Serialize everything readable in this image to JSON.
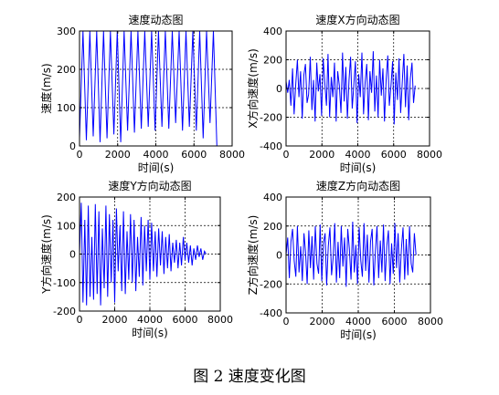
{
  "figure": {
    "caption": "图 2  速度变化图"
  },
  "chart_data": [
    {
      "type": "line",
      "title": "速度动态图",
      "xlabel": "时间(s)",
      "ylabel": "速度(m/s)",
      "xlim": [
        0,
        8000
      ],
      "ylim": [
        0,
        300
      ],
      "xticks": [
        0,
        2000,
        4000,
        6000,
        8000
      ],
      "yticks": [
        0,
        100,
        200,
        300
      ],
      "grid": true,
      "line_color": "#0000ff",
      "series": [
        {
          "x": [
            0,
            180,
            360,
            540,
            720,
            900,
            1080,
            1260,
            1440,
            1620,
            1800,
            1980,
            2160,
            2340,
            2520,
            2700,
            2880,
            3060,
            3240,
            3420,
            3600,
            3780,
            3960,
            4140,
            4320,
            4500,
            4680,
            4860,
            5040,
            5220,
            5400,
            5580,
            5760,
            5940,
            6120,
            6300,
            6480,
            6660,
            6840,
            7020,
            7200
          ],
          "y": [
            20,
            300,
            15,
            300,
            25,
            300,
            10,
            300,
            20,
            300,
            30,
            300,
            10,
            300,
            40,
            300,
            35,
            300,
            45,
            300,
            50,
            300,
            40,
            300,
            50,
            300,
            45,
            300,
            60,
            300,
            40,
            300,
            50,
            300,
            40,
            300,
            20,
            300,
            60,
            300,
            0
          ]
        }
      ]
    },
    {
      "type": "line",
      "title": "速度X方向动态图",
      "xlabel": "时间(s)",
      "ylabel": "X方向速度(m/s)",
      "xlim": [
        0,
        8000
      ],
      "ylim": [
        -400,
        400
      ],
      "xticks": [
        0,
        2000,
        4000,
        6000,
        8000
      ],
      "yticks": [
        -400,
        -200,
        0,
        200,
        400
      ],
      "grid": true,
      "line_color": "#0000ff",
      "series": [
        {
          "x": [
            0,
            90,
            180,
            270,
            360,
            450,
            540,
            630,
            720,
            810,
            900,
            990,
            1080,
            1170,
            1260,
            1350,
            1440,
            1530,
            1620,
            1710,
            1800,
            1890,
            1980,
            2070,
            2160,
            2250,
            2340,
            2430,
            2520,
            2610,
            2700,
            2790,
            2880,
            2970,
            3060,
            3150,
            3240,
            3330,
            3420,
            3510,
            3600,
            3690,
            3780,
            3870,
            3960,
            4050,
            4140,
            4230,
            4320,
            4410,
            4500,
            4590,
            4680,
            4770,
            4860,
            4950,
            5040,
            5130,
            5220,
            5310,
            5400,
            5490,
            5580,
            5670,
            5760,
            5850,
            5940,
            6030,
            6120,
            6210,
            6300,
            6390,
            6480,
            6570,
            6660,
            6750,
            6840,
            6930,
            7020,
            7110,
            7200
          ],
          "y": [
            50,
            -30,
            60,
            -120,
            140,
            -180,
            30,
            200,
            -60,
            120,
            -210,
            90,
            170,
            -100,
            -40,
            220,
            -150,
            60,
            -230,
            180,
            -20,
            100,
            -190,
            210,
            40,
            -120,
            240,
            -200,
            80,
            -60,
            180,
            -230,
            120,
            20,
            -170,
            250,
            -90,
            150,
            -210,
            60,
            220,
            -140,
            30,
            190,
            -240,
            100,
            -60,
            250,
            -180,
            40,
            170,
            -220,
            120,
            -30,
            260,
            -160,
            90,
            -200,
            200,
            -50,
            140,
            -230,
            60,
            230,
            -120,
            20,
            190,
            -250,
            110,
            -80,
            210,
            -170,
            50,
            240,
            -130,
            160,
            -220,
            70,
            180,
            -100,
            20
          ]
        }
      ]
    },
    {
      "type": "line",
      "title": "速度Y方向动态图",
      "xlabel": "时间(s)",
      "ylabel": "Y方向速度(m/s)",
      "xlim": [
        0,
        8000
      ],
      "ylim": [
        -200,
        200
      ],
      "xticks": [
        0,
        2000,
        4000,
        6000,
        8000
      ],
      "yticks": [
        -200,
        -100,
        0,
        100,
        200
      ],
      "grid": true,
      "line_color": "#0000ff",
      "series": [
        {
          "x": [
            0,
            100,
            200,
            300,
            400,
            500,
            600,
            700,
            800,
            900,
            1000,
            1100,
            1200,
            1300,
            1400,
            1500,
            1600,
            1700,
            1800,
            1900,
            2000,
            2100,
            2200,
            2300,
            2400,
            2500,
            2600,
            2700,
            2800,
            2900,
            3000,
            3100,
            3200,
            3300,
            3400,
            3500,
            3600,
            3700,
            3800,
            3900,
            4000,
            4100,
            4200,
            4300,
            4400,
            4500,
            4600,
            4700,
            4800,
            4900,
            5000,
            5100,
            5200,
            5300,
            5400,
            5500,
            5600,
            5700,
            5800,
            5900,
            6000,
            6100,
            6200,
            6300,
            6400,
            6500,
            6600,
            6700,
            6800,
            6900,
            7000,
            7100,
            7200
          ],
          "y": [
            0,
            180,
            -170,
            120,
            -180,
            170,
            -150,
            60,
            -160,
            175,
            -140,
            150,
            -180,
            90,
            -120,
            170,
            -150,
            140,
            -100,
            120,
            -170,
            160,
            -60,
            100,
            -130,
            150,
            -140,
            80,
            -90,
            140,
            -100,
            120,
            -130,
            60,
            -80,
            130,
            -110,
            100,
            -60,
            120,
            -90,
            110,
            -60,
            80,
            -80,
            90,
            -40,
            80,
            -70,
            60,
            -50,
            70,
            -60,
            40,
            -30,
            50,
            -50,
            40,
            -40,
            60,
            -20,
            40,
            -30,
            30,
            -40,
            20,
            -20,
            30,
            -10,
            20,
            -20,
            10,
            0
          ]
        }
      ]
    },
    {
      "type": "line",
      "title": "速度Z方向动态图",
      "xlabel": "时间(s)",
      "ylabel": "Z方向速度(m/s)",
      "xlim": [
        0,
        8000
      ],
      "ylim": [
        -400,
        400
      ],
      "xticks": [
        0,
        2000,
        4000,
        6000,
        8000
      ],
      "yticks": [
        -400,
        -200,
        0,
        200,
        400
      ],
      "grid": true,
      "line_color": "#0000ff",
      "series": [
        {
          "x": [
            0,
            90,
            180,
            270,
            360,
            450,
            540,
            630,
            720,
            810,
            900,
            990,
            1080,
            1170,
            1260,
            1350,
            1440,
            1530,
            1620,
            1710,
            1800,
            1890,
            1980,
            2070,
            2160,
            2250,
            2340,
            2430,
            2520,
            2610,
            2700,
            2790,
            2880,
            2970,
            3060,
            3150,
            3240,
            3330,
            3420,
            3510,
            3600,
            3690,
            3780,
            3870,
            3960,
            4050,
            4140,
            4230,
            4320,
            4410,
            4500,
            4590,
            4680,
            4770,
            4860,
            4950,
            5040,
            5130,
            5220,
            5310,
            5400,
            5490,
            5580,
            5670,
            5760,
            5850,
            5940,
            6030,
            6120,
            6210,
            6300,
            6390,
            6480,
            6570,
            6660,
            6750,
            6840,
            6930,
            7020,
            7110,
            7200
          ],
          "y": [
            0,
            120,
            -160,
            90,
            180,
            -40,
            -150,
            200,
            -120,
            60,
            -180,
            150,
            20,
            -200,
            170,
            -90,
            130,
            -170,
            200,
            -60,
            -130,
            210,
            -180,
            80,
            150,
            -210,
            60,
            190,
            -140,
            -20,
            220,
            -190,
            90,
            -160,
            200,
            -80,
            120,
            -220,
            180,
            40,
            -170,
            230,
            -120,
            70,
            -200,
            190,
            -40,
            -150,
            220,
            -110,
            140,
            -190,
            90,
            180,
            -210,
            30,
            200,
            -160,
            100,
            -120,
            210,
            -180,
            60,
            170,
            -200,
            80,
            -130,
            220,
            -90,
            150,
            -190,
            40,
            190,
            -170,
            110,
            -140,
            200,
            -60,
            -120,
            150,
            0
          ]
        }
      ]
    }
  ]
}
